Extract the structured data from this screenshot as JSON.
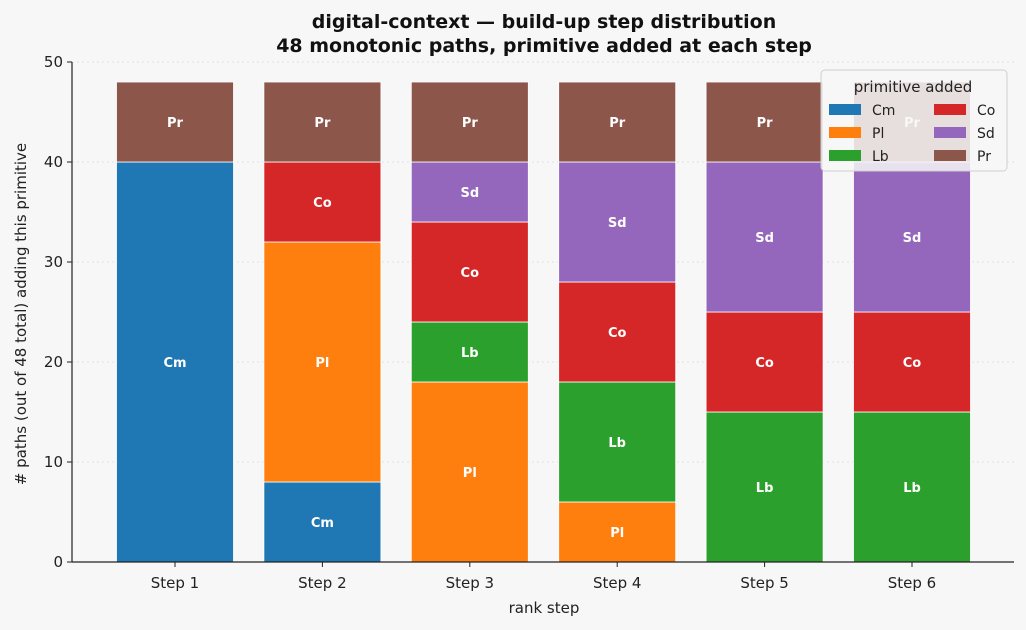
{
  "chart_data": {
    "type": "bar",
    "stacked": true,
    "title_line1": "digital-context — build-up step distribution",
    "title_line2": "48 monotonic paths, primitive added at each step",
    "xlabel": "rank step",
    "ylabel": "# paths (out of 48 total) adding this primitive",
    "categories": [
      "Step 1",
      "Step 2",
      "Step 3",
      "Step 4",
      "Step 5",
      "Step 6"
    ],
    "ylim": [
      0,
      50
    ],
    "yticks": [
      0,
      10,
      20,
      30,
      40,
      50
    ],
    "grid": true,
    "legend_title": "primitive added",
    "legend_position": "top-right",
    "series": [
      {
        "name": "Cm",
        "color": "#1f77b4",
        "values": [
          40,
          8,
          0,
          0,
          0,
          0
        ]
      },
      {
        "name": "Pl",
        "color": "#ff7f0e",
        "values": [
          0,
          24,
          18,
          6,
          0,
          0
        ]
      },
      {
        "name": "Lb",
        "color": "#2ca02c",
        "values": [
          0,
          0,
          6,
          12,
          15,
          15
        ]
      },
      {
        "name": "Co",
        "color": "#d62728",
        "values": [
          0,
          8,
          10,
          10,
          10,
          10
        ]
      },
      {
        "name": "Sd",
        "color": "#9467bd",
        "values": [
          0,
          0,
          6,
          12,
          15,
          15
        ]
      },
      {
        "name": "Pr",
        "color": "#8c564b",
        "values": [
          8,
          8,
          8,
          8,
          8,
          8
        ]
      }
    ],
    "legend_order": [
      "Cm",
      "Co",
      "Pl",
      "Sd",
      "Lb",
      "Pr"
    ]
  }
}
